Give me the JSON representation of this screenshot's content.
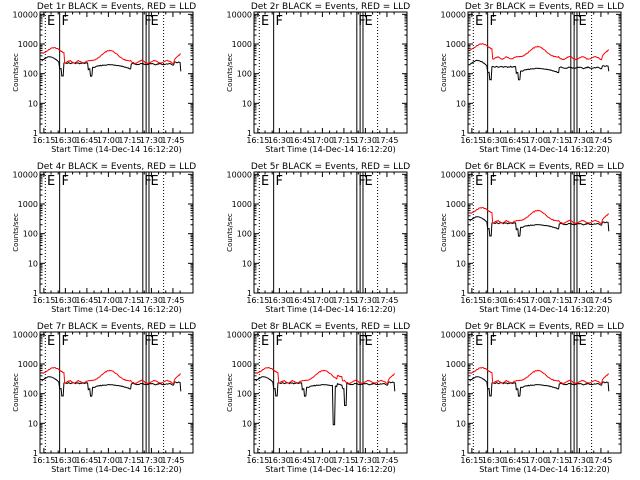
{
  "figure": {
    "start_time": "16:12:20",
    "x_tick_labels": [
      "16:15",
      "16:30",
      "16:45",
      "17:00",
      "17:15",
      "17:30",
      "17:45"
    ],
    "x_tick_minutes": [
      15,
      30,
      45,
      60,
      75,
      90,
      105
    ],
    "y_tick_labels": [
      "1",
      "10",
      "100",
      "1000",
      "10000"
    ],
    "y_tick_values": [
      1,
      10,
      100,
      1000,
      10000
    ],
    "x_range_minutes": [
      12.3,
      119.0
    ],
    "y_range": [
      1,
      12000
    ],
    "y_scale": "log",
    "ylabel": "Counts/sec",
    "xlabel": "Start Time (14-Dec-14 16:12:20)",
    "colors": {
      "events": "#000000",
      "lld": "#ff0000"
    },
    "markers": {
      "solid_minutes": [
        26,
        84,
        86.3,
        88.3
      ],
      "dotted_minutes": [
        16,
        98.5
      ],
      "labels": [
        {
          "text": "E",
          "minute": 16.5
        },
        {
          "text": "F",
          "minute": 26.6
        },
        {
          "text": "F",
          "minute": 84.3
        },
        {
          "text": "E",
          "minute": 88.7
        }
      ]
    }
  },
  "chart_data": [
    {
      "type": "line",
      "scale": "log",
      "title": "Det 1r BLACK = Events, RED = LLD",
      "profile": "main",
      "has_data": true,
      "series": [
        {
          "name": "Events",
          "color": "#000000"
        },
        {
          "name": "LLD",
          "color": "#ff0000"
        }
      ]
    },
    {
      "type": "line",
      "scale": "log",
      "title": "Det 2r BLACK = Events, RED = LLD",
      "profile": "none",
      "has_data": false,
      "series": []
    },
    {
      "type": "line",
      "scale": "log",
      "title": "Det 3r BLACK = Events, RED = LLD",
      "profile": "high",
      "has_data": true,
      "series": [
        {
          "name": "Events",
          "color": "#000000"
        },
        {
          "name": "LLD",
          "color": "#ff0000"
        }
      ]
    },
    {
      "type": "line",
      "scale": "log",
      "title": "Det 4r BLACK = Events, RED = LLD",
      "profile": "none",
      "has_data": false,
      "series": []
    },
    {
      "type": "line",
      "scale": "log",
      "title": "Det 5r BLACK = Events, RED = LLD",
      "profile": "none",
      "has_data": false,
      "series": []
    },
    {
      "type": "line",
      "scale": "log",
      "title": "Det 6r BLACK = Events, RED = LLD",
      "profile": "main",
      "has_data": true,
      "series": [
        {
          "name": "Events",
          "color": "#000000"
        },
        {
          "name": "LLD",
          "color": "#ff0000"
        }
      ]
    },
    {
      "type": "line",
      "scale": "log",
      "title": "Det 7r BLACK = Events, RED = LLD",
      "profile": "main",
      "has_data": true,
      "series": [
        {
          "name": "Events",
          "color": "#000000"
        },
        {
          "name": "LLD",
          "color": "#ff0000"
        }
      ]
    },
    {
      "type": "line",
      "scale": "log",
      "title": "Det 8r BLACK = Events, RED = LLD",
      "profile": "det8",
      "has_data": true,
      "series": [
        {
          "name": "Events",
          "color": "#000000"
        },
        {
          "name": "LLD",
          "color": "#ff0000"
        }
      ]
    },
    {
      "type": "line",
      "scale": "log",
      "title": "Det 9r BLACK = Events, RED = LLD",
      "profile": "main",
      "has_data": true,
      "series": [
        {
          "name": "Events",
          "color": "#000000"
        },
        {
          "name": "LLD",
          "color": "#ff0000"
        }
      ]
    }
  ]
}
